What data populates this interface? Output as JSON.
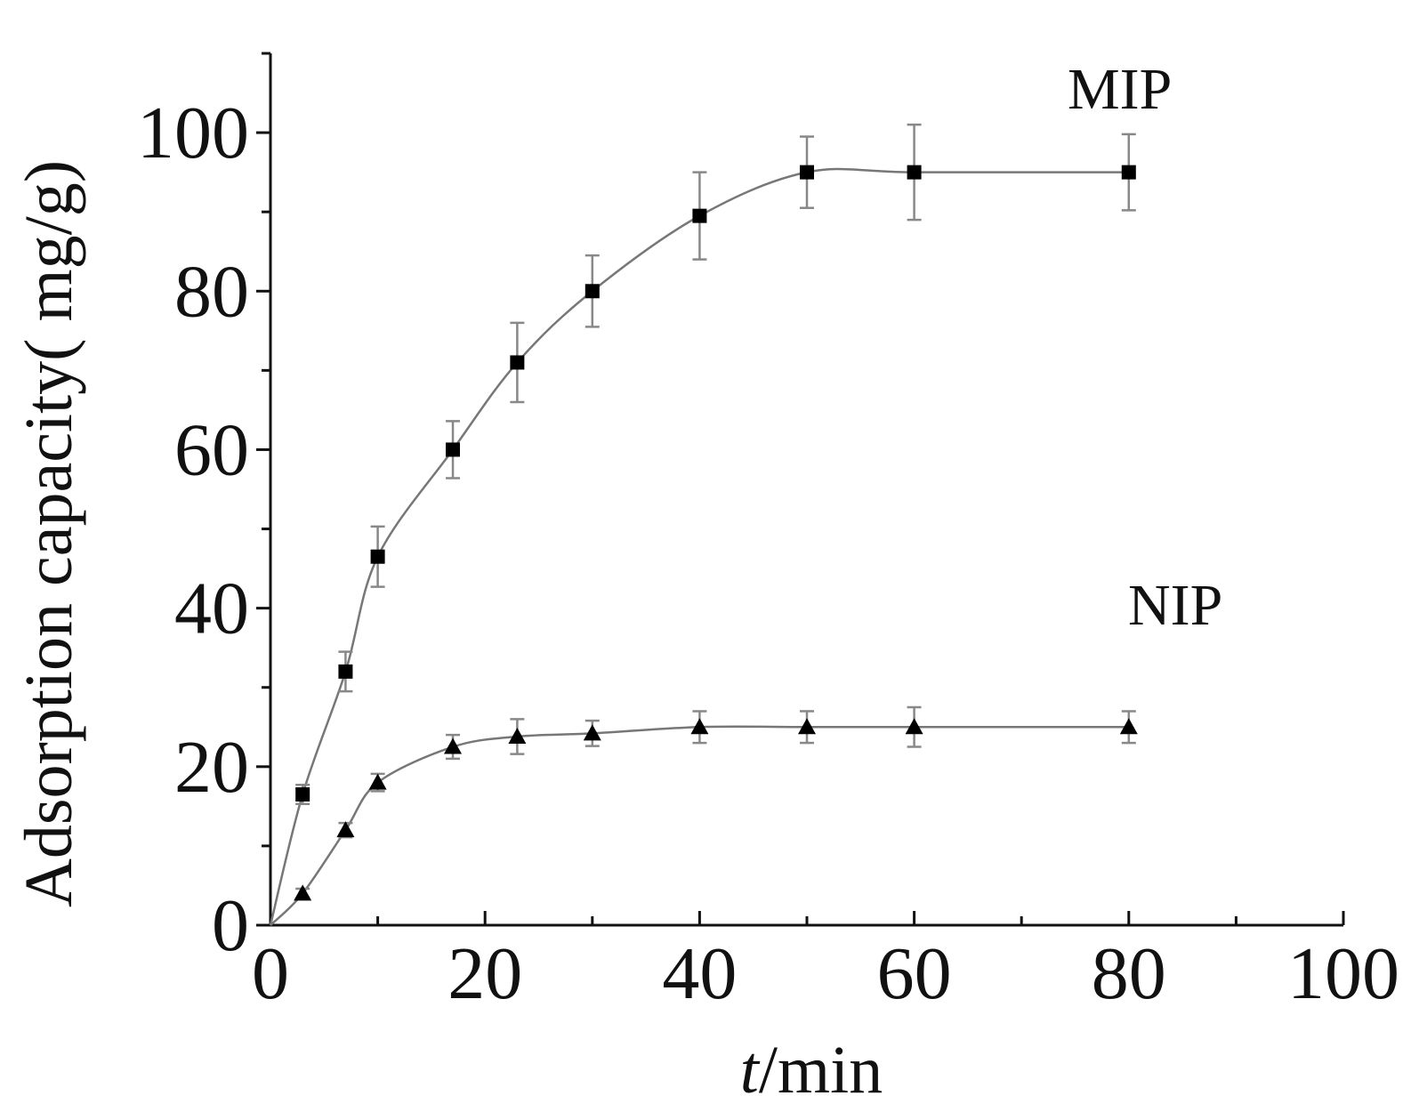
{
  "chart_data": {
    "type": "line",
    "xlabel": "t/min",
    "xlabel_italic_part": "t",
    "xlabel_rest": "/min",
    "ylabel": "Adsorption capacity( mg/g)",
    "xlim": [
      0,
      100
    ],
    "ylim": [
      0,
      110
    ],
    "xticks": [
      0,
      20,
      40,
      60,
      80,
      100
    ],
    "yticks": [
      0,
      20,
      40,
      60,
      80,
      100
    ],
    "grid": false,
    "series": [
      {
        "name": "MIP",
        "marker": "square",
        "x": [
          0,
          3,
          7,
          10,
          17,
          23,
          30,
          40,
          50,
          60,
          80
        ],
        "y": [
          0,
          16.5,
          32,
          46.5,
          60,
          71,
          80,
          89.5,
          95,
          95,
          95
        ],
        "err": [
          0,
          1.2,
          2.5,
          3.8,
          3.6,
          5,
          4.5,
          5.5,
          4.5,
          6,
          4.8
        ]
      },
      {
        "name": "NIP",
        "marker": "triangle",
        "x": [
          0,
          3,
          7,
          10,
          17,
          23,
          30,
          40,
          50,
          60,
          80
        ],
        "y": [
          0,
          4,
          12,
          18,
          22.5,
          23.8,
          24.2,
          25,
          25,
          25,
          25
        ],
        "err": [
          0,
          0.6,
          0.9,
          1.1,
          1.5,
          2.2,
          1.6,
          2,
          2,
          2.5,
          2
        ]
      }
    ]
  }
}
